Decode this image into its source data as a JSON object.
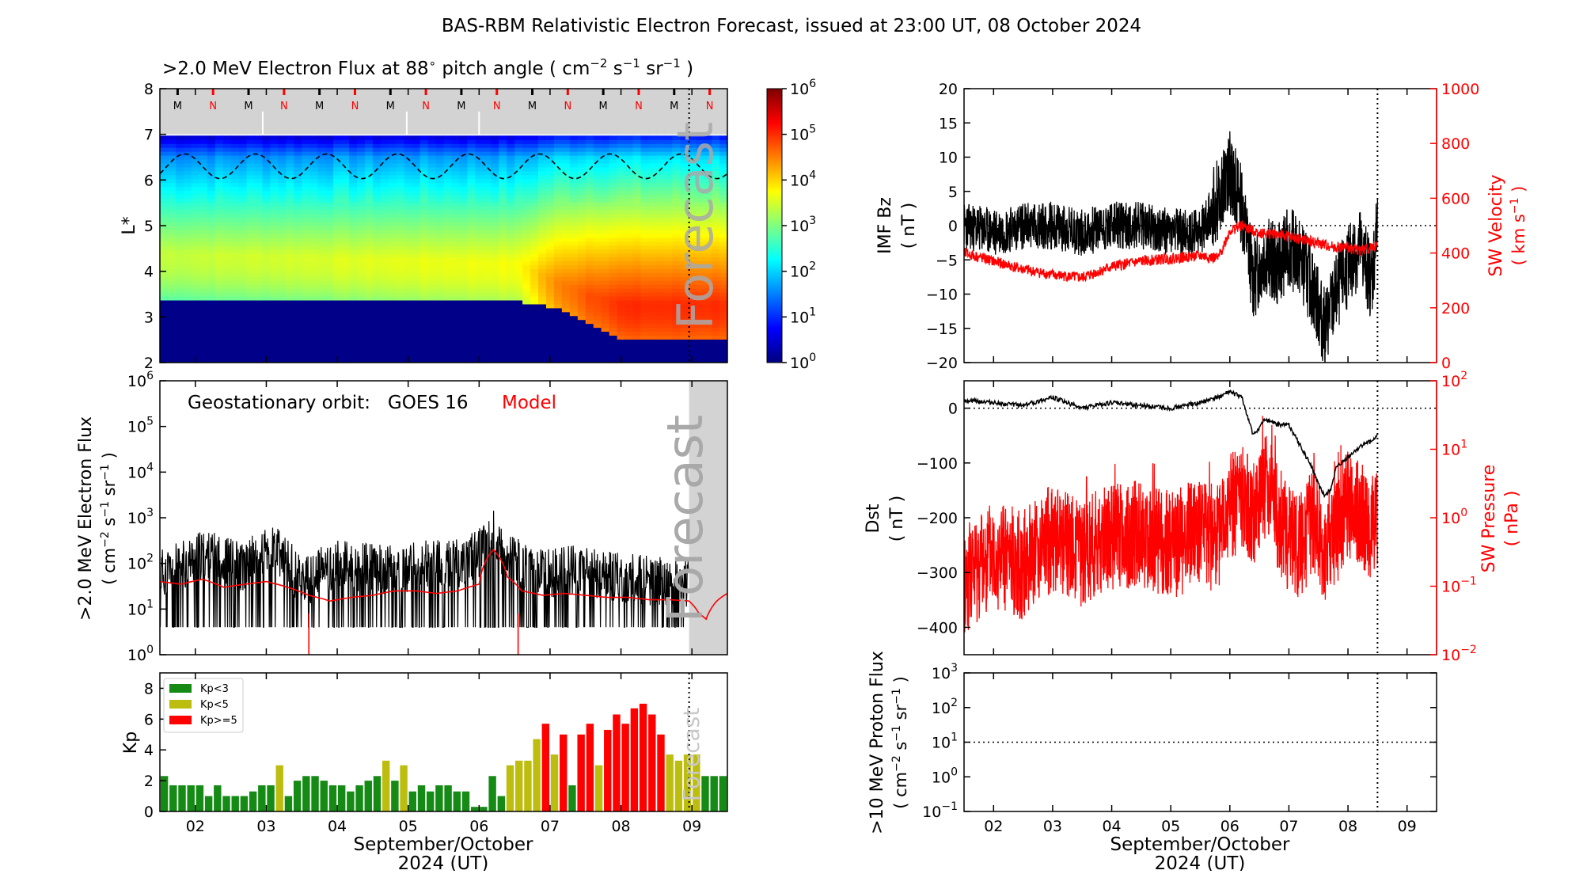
{
  "figure": {
    "title": "BAS-RBM Relativistic Electron Forecast, issued at 23:00 UT, 08 October 2024"
  },
  "colors": {
    "observed": "#000000",
    "model": "#ff0000",
    "kp_quiet": "#158a15",
    "kp_active": "#bdbd10",
    "kp_storm": "#ff0000",
    "forecast_shade": "#d3d3d3",
    "forecast_text": "#a9a9a9"
  },
  "chart_data": [
    {
      "id": "flux-map",
      "type": "heatmap",
      "title": ">2.0 MeV Electron Flux at 88 pitch angle ( cm s sr )",
      "ylabel": "L*",
      "ylim": [
        2,
        8
      ],
      "yticks": [
        "2",
        "3",
        "4",
        "5",
        "6",
        "7",
        "8"
      ],
      "colorbar": {
        "scale": "log",
        "range": [
          1,
          1000000
        ],
        "ticks": [
          "10^0",
          "10^1",
          "10^2",
          "10^3",
          "10^4",
          "10^5",
          "10^6"
        ]
      },
      "magnetopause_markers": [
        "M",
        "N",
        "M",
        "N",
        "M",
        "N",
        "M",
        "N",
        "M",
        "N",
        "M",
        "N",
        "M",
        "N",
        "M",
        "N"
      ],
      "forecast_label": "Forecast",
      "forecast_start_day": 8.96,
      "x_range_days": [
        1.5,
        9.5
      ],
      "zones": [
        {
          "day": 1.5,
          "inner_edge": 3.35,
          "peak_L": 4.4,
          "peak_flux_log": 3.4
        },
        {
          "day": 6.5,
          "inner_edge": 3.35,
          "peak_L": 4.2,
          "peak_flux_log": 3.7
        },
        {
          "day": 7.0,
          "inner_edge": 3.2,
          "peak_L": 3.8,
          "peak_flux_log": 4.4
        },
        {
          "day": 7.5,
          "inner_edge": 2.9,
          "peak_L": 3.5,
          "peak_flux_log": 4.8
        },
        {
          "day": 8.0,
          "inner_edge": 2.5,
          "peak_L": 3.3,
          "peak_flux_log": 5.0
        },
        {
          "day": 9.5,
          "inner_edge": 2.5,
          "peak_L": 3.3,
          "peak_flux_log": 5.0
        }
      ]
    },
    {
      "id": "goes-flux",
      "type": "line",
      "ylabel": ">2.0 MeV Electron Flux ( cm s sr )",
      "ylim": [
        1,
        1000000
      ],
      "yscale": "log",
      "yticks": [
        "10^0",
        "10^1",
        "10^2",
        "10^3",
        "10^4",
        "10^5",
        "10^6"
      ],
      "text_label": "Geostationary orbit:   GOES 16",
      "model_label": "Model",
      "forecast_label": "Forecast",
      "series": [
        {
          "name": "GOES 16",
          "x": [
            1.5,
            1.8,
            2.1,
            2.4,
            2.7,
            2.9,
            3.1,
            3.2,
            3.4,
            3.6,
            3.8,
            4.0,
            4.3,
            4.6,
            4.9,
            5.2,
            5.5,
            5.8,
            6.0,
            6.1,
            6.2,
            6.3,
            6.4,
            6.5,
            6.6,
            6.8,
            7.0,
            7.3,
            7.6,
            7.9,
            8.2,
            8.5,
            8.96
          ],
          "y": [
            60,
            90,
            150,
            120,
            80,
            160,
            200,
            150,
            60,
            40,
            70,
            90,
            80,
            80,
            60,
            100,
            90,
            110,
            170,
            300,
            550,
            200,
            100,
            150,
            80,
            60,
            60,
            70,
            60,
            50,
            45,
            40,
            40
          ]
        },
        {
          "name": "Model",
          "x": [
            1.5,
            1.8,
            2.1,
            2.4,
            2.7,
            3.0,
            3.3,
            3.6,
            3.9,
            4.2,
            4.5,
            4.8,
            5.1,
            5.4,
            5.7,
            6.0,
            6.2,
            6.4,
            6.6,
            6.9,
            7.2,
            7.5,
            7.8,
            8.1,
            8.4,
            8.7,
            8.96,
            9.1,
            9.2,
            9.35,
            9.5
          ],
          "y": [
            40,
            35,
            45,
            30,
            35,
            40,
            30,
            20,
            15,
            18,
            20,
            25,
            25,
            22,
            25,
            35,
            200,
            50,
            25,
            20,
            22,
            20,
            18,
            18,
            16,
            16,
            15,
            8,
            6,
            15,
            22
          ]
        }
      ]
    },
    {
      "id": "kp",
      "type": "bar",
      "ylabel": "Kp",
      "ylim": [
        0,
        9
      ],
      "yticks": [
        "0",
        "2",
        "4",
        "6",
        "8"
      ],
      "forecast_label": "Forecast",
      "legend": [
        "Kp<3",
        "Kp<5",
        "Kp>=5"
      ],
      "x_start_day": 1.5,
      "bin_days": 0.125,
      "values": [
        2.3,
        1.7,
        1.7,
        1.7,
        1.7,
        1.0,
        1.7,
        1.0,
        1.0,
        1.0,
        1.3,
        1.7,
        1.7,
        3.0,
        1.0,
        2.0,
        2.3,
        2.3,
        2.0,
        1.7,
        1.7,
        1.3,
        1.7,
        2.0,
        2.3,
        3.3,
        2.0,
        3.0,
        1.3,
        1.7,
        1.3,
        1.7,
        1.7,
        1.3,
        1.3,
        0.3,
        0.3,
        2.3,
        1.0,
        3.0,
        3.3,
        3.3,
        4.7,
        5.7,
        3.7,
        5.0,
        1.7,
        5.0,
        5.7,
        3.0,
        5.3,
        6.3,
        5.7,
        6.7,
        7.0,
        6.3,
        5.0,
        3.7,
        3.3,
        3.7,
        3.7,
        2.3,
        2.3,
        2.3,
        2.3,
        2.3,
        2.3,
        2.3,
        2.3,
        2.3
      ]
    },
    {
      "id": "imf-bz",
      "type": "line",
      "ylabel_left": [
        "IMF Bz",
        "( nT )"
      ],
      "ylabel_right": [
        "SW Velocity",
        "( km s )"
      ],
      "ylim_left": [
        -20,
        20
      ],
      "ylim_right": [
        0,
        1000
      ],
      "yticks_left": [
        "-20",
        "-15",
        "-10",
        "-5",
        "0",
        "5",
        "10",
        "15",
        "20"
      ],
      "yticks_right": [
        "0",
        "200",
        "400",
        "600",
        "800",
        "1000"
      ],
      "series": [
        {
          "name": "IMF Bz",
          "x": [
            1.5,
            2.0,
            2.5,
            3.0,
            3.5,
            4.0,
            4.5,
            5.0,
            5.5,
            5.8,
            6.0,
            6.2,
            6.4,
            6.6,
            6.8,
            7.0,
            7.2,
            7.4,
            7.6,
            7.8,
            8.0,
            8.2,
            8.4,
            8.5
          ],
          "y": [
            0,
            -1,
            0,
            0,
            -1,
            0,
            0,
            -1,
            -1,
            4,
            8,
            3,
            -8,
            -4,
            -6,
            -3,
            -5,
            -9,
            -15,
            -10,
            -6,
            -3,
            -8,
            0
          ]
        },
        {
          "name": "SW Velocity",
          "x": [
            1.5,
            2.0,
            2.5,
            3.0,
            3.5,
            4.0,
            4.5,
            5.0,
            5.5,
            5.8,
            6.0,
            6.2,
            6.4,
            6.6,
            6.8,
            7.0,
            7.2,
            7.4,
            7.6,
            7.8,
            8.0,
            8.2,
            8.4,
            8.5
          ],
          "y": [
            400,
            370,
            340,
            320,
            310,
            350,
            370,
            380,
            390,
            380,
            480,
            500,
            480,
            470,
            470,
            460,
            450,
            440,
            430,
            420,
            420,
            410,
            420,
            430
          ]
        }
      ]
    },
    {
      "id": "dst",
      "type": "line",
      "ylabel_left": [
        "Dst",
        "( nT )"
      ],
      "ylabel_right": [
        "SW Pressure",
        "( nPa )"
      ],
      "ylim_left": [
        -450,
        50
      ],
      "ylim_right": [
        0.01,
        100
      ],
      "yticks_left": [
        "-400",
        "-300",
        "-200",
        "-100",
        "0"
      ],
      "yticks_right": [
        "10^-2",
        "10^-1",
        "10^0",
        "10^1",
        "10^2"
      ],
      "series": [
        {
          "name": "Dst",
          "x": [
            1.5,
            2.0,
            2.5,
            3.0,
            3.5,
            4.0,
            4.5,
            5.0,
            5.5,
            5.8,
            6.0,
            6.2,
            6.4,
            6.6,
            6.8,
            7.0,
            7.2,
            7.4,
            7.5,
            7.6,
            7.7,
            7.8,
            8.0,
            8.2,
            8.4,
            8.5
          ],
          "y": [
            15,
            10,
            5,
            20,
            0,
            10,
            5,
            0,
            10,
            20,
            30,
            20,
            -50,
            -20,
            -30,
            -30,
            -70,
            -110,
            -140,
            -160,
            -150,
            -110,
            -90,
            -70,
            -60,
            -50
          ]
        },
        {
          "name": "SW Pressure",
          "x": [
            1.5,
            2.0,
            2.5,
            3.0,
            3.5,
            4.0,
            4.5,
            5.0,
            5.5,
            5.8,
            6.0,
            6.2,
            6.4,
            6.6,
            6.8,
            7.0,
            7.2,
            7.4,
            7.6,
            7.8,
            8.0,
            8.2,
            8.4,
            8.5
          ],
          "y": [
            0.1,
            0.3,
            0.2,
            0.5,
            0.3,
            0.5,
            0.6,
            0.4,
            0.6,
            0.5,
            1.5,
            2.0,
            1.0,
            3.0,
            1.0,
            0.5,
            0.4,
            0.8,
            0.3,
            0.6,
            1.5,
            1.0,
            0.8,
            1.0
          ]
        }
      ]
    },
    {
      "id": "proton",
      "type": "line",
      "ylabel": [
        ">10 MeV Proton Flux",
        "( cm s sr )"
      ],
      "ylim": [
        0.1,
        1000
      ],
      "yscale": "log",
      "yticks": [
        "10^-1",
        "10^0",
        "10^1",
        "10^2",
        "10^3"
      ],
      "threshold": 10
    }
  ],
  "x_axis": {
    "ticks": [
      "02",
      "03",
      "04",
      "05",
      "06",
      "07",
      "08",
      "09"
    ],
    "label": "September/October",
    "sublabel": "2024 (UT)"
  }
}
